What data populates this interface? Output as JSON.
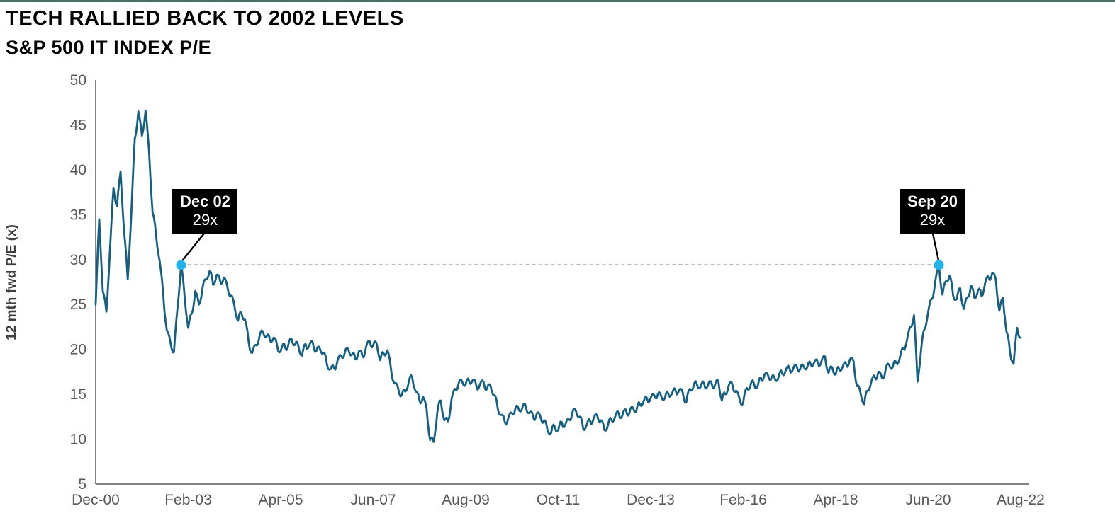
{
  "page": {
    "title": "TECH RALLIED BACK TO 2002 LEVELS",
    "subtitle": "S&P 500 IT INDEX P/E"
  },
  "chart_data": {
    "type": "line",
    "title": "TECH RALLIED BACK TO 2002 LEVELS",
    "subtitle": "S&P 500 IT INDEX P/E",
    "ylabel": "12 mth fwd P/E (x)",
    "xlabel": "",
    "frequency_note": "monthly values, Dec-2000 through Aug-2022",
    "ylim": [
      5,
      50
    ],
    "y_ticks": [
      5,
      10,
      15,
      20,
      25,
      30,
      35,
      40,
      45,
      50
    ],
    "x_tick_labels": [
      "Dec-00",
      "Feb-03",
      "Apr-05",
      "Jun-07",
      "Aug-09",
      "Oct-11",
      "Dec-13",
      "Feb-16",
      "Apr-18",
      "Jun-20",
      "Aug-22"
    ],
    "x_tick_month_indexes": [
      0,
      26,
      52,
      78,
      104,
      130,
      156,
      182,
      208,
      234,
      260
    ],
    "grid": false,
    "legend": false,
    "render_noise": 0.45,
    "series": [
      {
        "name": "S&P 500 IT index 12 mth fwd P/E",
        "color": "#156082",
        "values": [
          25.0,
          34.5,
          26.5,
          24.2,
          31.0,
          38.0,
          36.0,
          39.8,
          33.0,
          27.8,
          35.0,
          43.5,
          46.5,
          43.8,
          46.6,
          42.0,
          35.2,
          32.6,
          29.8,
          26.0,
          22.1,
          20.8,
          19.7,
          24.6,
          29.4,
          25.8,
          22.4,
          24.0,
          26.5,
          25.0,
          26.8,
          27.8,
          28.7,
          27.2,
          28.3,
          27.6,
          28.0,
          27.0,
          26.0,
          24.8,
          23.2,
          24.0,
          23.3,
          20.8,
          19.6,
          20.5,
          21.4,
          22.0,
          21.4,
          21.0,
          21.3,
          20.4,
          19.8,
          20.6,
          20.2,
          21.2,
          20.5,
          20.3,
          19.3,
          20.6,
          20.4,
          20.8,
          19.8,
          20.1,
          19.6,
          18.3,
          17.8,
          17.9,
          18.8,
          19.3,
          19.6,
          20.0,
          19.4,
          18.9,
          19.8,
          19.2,
          20.3,
          20.9,
          20.5,
          20.6,
          18.8,
          19.5,
          19.9,
          17.8,
          16.2,
          15.7,
          14.9,
          15.3,
          16.4,
          16.8,
          15.3,
          14.3,
          14.7,
          13.4,
          9.9,
          9.7,
          12.9,
          14.3,
          12.1,
          12.0,
          14.4,
          15.6,
          16.2,
          16.4,
          16.1,
          16.4,
          16.6,
          15.9,
          16.1,
          16.4,
          15.6,
          15.9,
          14.9,
          13.4,
          12.7,
          11.9,
          12.4,
          12.9,
          13.5,
          13.2,
          13.6,
          13.4,
          13.0,
          12.4,
          12.9,
          12.5,
          12.1,
          11.0,
          10.7,
          11.4,
          11.0,
          11.9,
          11.6,
          12.2,
          13.0,
          13.1,
          12.5,
          11.2,
          11.6,
          12.0,
          12.4,
          12.6,
          12.1,
          11.0,
          11.6,
          12.1,
          12.5,
          12.9,
          12.6,
          13.3,
          12.9,
          13.5,
          13.2,
          13.9,
          14.2,
          14.5,
          14.6,
          14.9,
          15.0,
          14.7,
          14.6,
          15.0,
          15.1,
          15.4,
          15.5,
          15.2,
          14.1,
          15.6,
          15.8,
          16.1,
          15.8,
          16.2,
          15.9,
          16.4,
          15.9,
          16.5,
          14.3,
          15.0,
          16.1,
          16.0,
          15.4,
          14.4,
          14.1,
          15.7,
          15.9,
          16.2,
          15.8,
          16.8,
          17.2,
          17.1,
          16.9,
          16.6,
          17.0,
          17.3,
          17.7,
          17.9,
          17.8,
          18.2,
          17.8,
          18.1,
          18.0,
          18.3,
          18.6,
          18.5,
          18.7,
          19.2,
          17.4,
          18.0,
          17.2,
          17.8,
          18.1,
          18.3,
          18.9,
          18.7,
          15.9,
          15.1,
          13.9,
          15.4,
          16.4,
          16.9,
          17.5,
          16.8,
          17.7,
          18.3,
          18.0,
          18.5,
          19.0,
          20.1,
          21.0,
          22.5,
          23.8,
          16.4,
          20.0,
          22.3,
          24.2,
          25.6,
          27.6,
          29.4,
          26.1,
          27.6,
          28.2,
          26.0,
          25.6,
          26.8,
          24.5,
          25.8,
          27.1,
          25.7,
          26.6,
          25.9,
          27.4,
          28.0,
          28.5,
          27.8,
          24.3,
          25.7,
          22.0,
          19.6,
          18.4,
          22.4,
          21.3
        ]
      }
    ],
    "annotations": [
      {
        "label": "Dec 02",
        "value_label": "29x",
        "month_index": 24,
        "value": 29.4
      },
      {
        "label": "Sep 20",
        "value_label": "29x",
        "month_index": 237,
        "value": 29.4
      }
    ],
    "reference_dash_line": {
      "style": "dashed",
      "value": 29.4,
      "from_month_index": 24,
      "to_month_index": 237
    },
    "colors": {
      "line": "#156082",
      "marker": "#22B2EE",
      "annotation_bg": "#000000",
      "annotation_text": "#FFFFFF",
      "axis_text": "#595959",
      "axis_line": "#595959",
      "title_text": "#000000",
      "top_bar": "#47735C"
    }
  }
}
